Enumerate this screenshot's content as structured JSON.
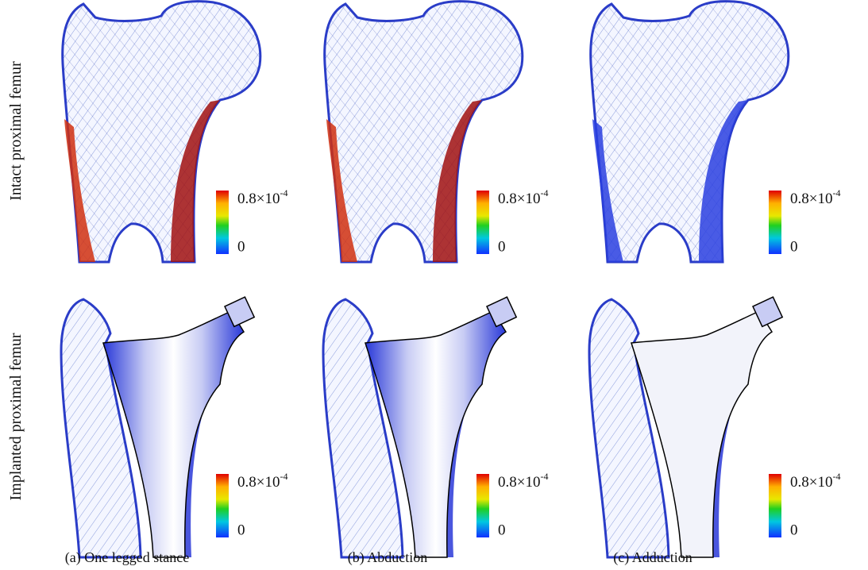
{
  "row_labels": [
    "Intact proximal femur",
    "Implanted proximal femur"
  ],
  "captions": [
    "(a) One legged stance",
    "(b) Abduction",
    "(c) Adduction"
  ],
  "panels": [
    [
      {
        "colorbar": {
          "max": "0.8×10",
          "max_exponent": "-4",
          "min": "0"
        }
      },
      {
        "colorbar": {
          "max": "0.8×10",
          "max_exponent": "-4",
          "min": "0"
        }
      },
      {
        "colorbar": {
          "max": "0.8×10",
          "max_exponent": "-4",
          "min": "0"
        }
      }
    ],
    [
      {
        "colorbar": {
          "max": "0.8×10",
          "max_exponent": "-4",
          "min": "0"
        }
      },
      {
        "colorbar": {
          "max": "0.8×10",
          "max_exponent": "-4",
          "min": "0"
        }
      },
      {
        "colorbar": {
          "max": "0.8×10",
          "max_exponent": "-4",
          "min": "0"
        }
      }
    ]
  ]
}
